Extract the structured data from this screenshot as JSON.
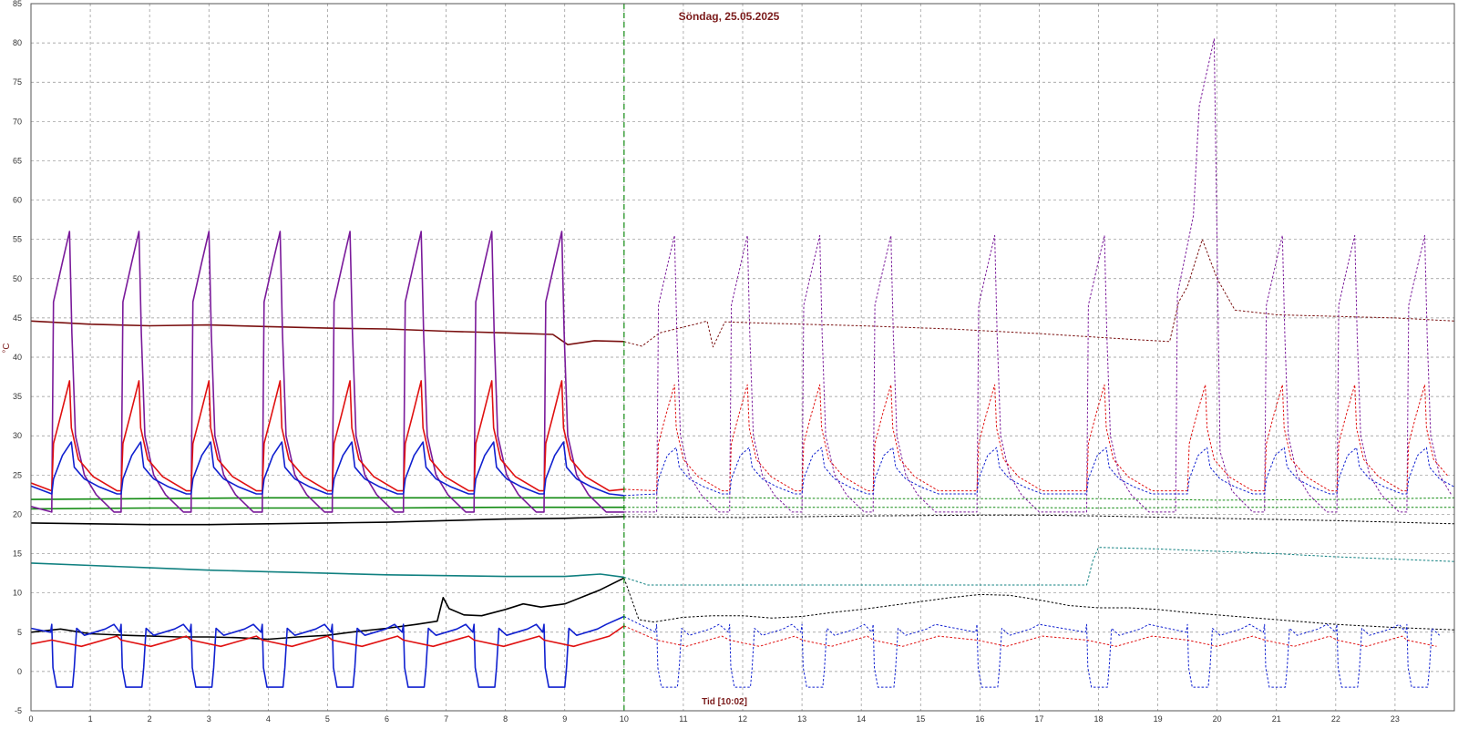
{
  "chart_data": {
    "type": "line",
    "title": "Söndag, 25.05.2025",
    "xlabel": "Tid [10:02]",
    "ylabel": "°C",
    "xlim": [
      0,
      24
    ],
    "ylim": [
      -5,
      85
    ],
    "x_ticks": [
      "0",
      "1",
      "2",
      "3",
      "4",
      "5",
      "6",
      "7",
      "8",
      "9",
      "10",
      "11",
      "12",
      "13",
      "14",
      "15",
      "16",
      "17",
      "18",
      "19",
      "20",
      "21",
      "22",
      "23"
    ],
    "y_ticks": [
      "-5",
      "0",
      "5",
      "10",
      "15",
      "20",
      "25",
      "30",
      "35",
      "40",
      "45",
      "50",
      "55",
      "60",
      "65",
      "70",
      "75",
      "80",
      "85"
    ],
    "grid": true,
    "current_time_marker": 10.0,
    "colors": {
      "purple": "#7a1a9a",
      "red": "#e01010",
      "blue": "#1020d0",
      "darkred": "#7a1010",
      "green": "#108a10",
      "black": "#000000",
      "teal": "#108080",
      "grid": "#909090",
      "marker": "#108a10"
    },
    "cycles": {
      "today": [
        0.35,
        1.52,
        2.7,
        3.9,
        5.08,
        6.28,
        7.47,
        8.65
      ],
      "yesterday": [
        10.55,
        11.78,
        13.0,
        14.2,
        15.95,
        17.8,
        19.5,
        20.8,
        22.02,
        23.2
      ]
    },
    "series": [
      {
        "color": "darkred",
        "solid": [
          [
            0,
            44.6
          ],
          [
            1,
            44.2
          ],
          [
            2,
            44.0
          ],
          [
            3,
            44.1
          ],
          [
            4,
            43.9
          ],
          [
            5,
            43.7
          ],
          [
            6,
            43.6
          ],
          [
            7,
            43.3
          ],
          [
            8,
            43.1
          ],
          [
            8.8,
            42.9
          ],
          [
            9.05,
            41.6
          ],
          [
            9.5,
            42.1
          ],
          [
            10,
            42.0
          ]
        ],
        "dashed": [
          [
            10,
            42.0
          ],
          [
            10.3,
            41.4
          ],
          [
            10.6,
            43.1
          ],
          [
            11.2,
            44.2
          ],
          [
            11.4,
            44.6
          ],
          [
            11.5,
            41.3
          ],
          [
            11.7,
            44.5
          ],
          [
            12.5,
            44.3
          ],
          [
            14,
            44.0
          ],
          [
            15.5,
            43.6
          ],
          [
            17,
            43.0
          ],
          [
            18.5,
            42.3
          ],
          [
            19.2,
            42.0
          ],
          [
            19.35,
            47.0
          ],
          [
            19.5,
            49.0
          ],
          [
            19.75,
            55.0
          ],
          [
            20.0,
            50.0
          ],
          [
            20.3,
            46.0
          ],
          [
            21,
            45.4
          ],
          [
            22,
            45.2
          ],
          [
            23,
            45.0
          ],
          [
            24,
            44.6
          ]
        ]
      },
      {
        "color": "green",
        "solid": [
          [
            0,
            21.9
          ],
          [
            2,
            22.0
          ],
          [
            4,
            22.1
          ],
          [
            6,
            22.1
          ],
          [
            8,
            22.1
          ],
          [
            10,
            22.1
          ]
        ],
        "dashed": [
          [
            10,
            22.1
          ],
          [
            12,
            22.1
          ],
          [
            14,
            22.0
          ],
          [
            16,
            22.0
          ],
          [
            18,
            22.0
          ],
          [
            20,
            21.8
          ],
          [
            22,
            21.9
          ],
          [
            24,
            22.1
          ]
        ]
      },
      {
        "color": "green",
        "solid": [
          [
            0,
            20.7
          ],
          [
            2,
            20.8
          ],
          [
            4,
            20.8
          ],
          [
            6,
            20.8
          ],
          [
            8,
            20.9
          ],
          [
            10,
            20.9
          ]
        ],
        "dashed": [
          [
            10,
            20.9
          ],
          [
            12,
            20.9
          ],
          [
            14,
            20.9
          ],
          [
            16,
            20.9
          ],
          [
            18,
            20.8
          ],
          [
            20,
            20.9
          ],
          [
            22,
            20.9
          ],
          [
            24,
            20.9
          ]
        ]
      },
      {
        "color": "black",
        "solid": [
          [
            0,
            18.9
          ],
          [
            1,
            18.8
          ],
          [
            2,
            18.7
          ],
          [
            3,
            18.7
          ],
          [
            4,
            18.8
          ],
          [
            5,
            18.9
          ],
          [
            6,
            19.0
          ],
          [
            7,
            19.2
          ],
          [
            8,
            19.4
          ],
          [
            9,
            19.5
          ],
          [
            10,
            19.7
          ]
        ],
        "dashed": [
          [
            10,
            19.7
          ],
          [
            12,
            19.6
          ],
          [
            14,
            19.8
          ],
          [
            16,
            19.9
          ],
          [
            17,
            19.9
          ],
          [
            18,
            19.8
          ],
          [
            20,
            19.5
          ],
          [
            22,
            19.2
          ],
          [
            24,
            18.8
          ]
        ]
      },
      {
        "color": "teal",
        "solid": [
          [
            0,
            13.8
          ],
          [
            1,
            13.5
          ],
          [
            2,
            13.2
          ],
          [
            3,
            12.9
          ],
          [
            4,
            12.7
          ],
          [
            5,
            12.5
          ],
          [
            6,
            12.3
          ],
          [
            7,
            12.2
          ],
          [
            8,
            12.1
          ],
          [
            9,
            12.1
          ],
          [
            9.6,
            12.4
          ],
          [
            10,
            12.0
          ]
        ],
        "dashed": [
          [
            10,
            12.0
          ],
          [
            10.4,
            11.0
          ],
          [
            12,
            11.0
          ],
          [
            14,
            11.0
          ],
          [
            16,
            11.0
          ],
          [
            17.8,
            11.0
          ],
          [
            17.9,
            14.0
          ],
          [
            18.0,
            15.8
          ],
          [
            19,
            15.6
          ],
          [
            20,
            15.3
          ],
          [
            21,
            15.0
          ],
          [
            22,
            14.6
          ],
          [
            23,
            14.3
          ],
          [
            24,
            14.0
          ]
        ]
      },
      {
        "color": "black",
        "solid": [
          [
            0,
            5.0
          ],
          [
            0.5,
            5.4
          ],
          [
            1,
            4.8
          ],
          [
            1.6,
            4.6
          ],
          [
            2.5,
            4.4
          ],
          [
            3,
            4.4
          ],
          [
            3.5,
            4.3
          ],
          [
            4,
            4.1
          ],
          [
            4.5,
            4.4
          ],
          [
            5,
            4.6
          ],
          [
            5.5,
            5.1
          ],
          [
            6,
            5.5
          ],
          [
            6.5,
            6.0
          ],
          [
            6.85,
            6.4
          ],
          [
            6.95,
            9.4
          ],
          [
            7.05,
            8.0
          ],
          [
            7.3,
            7.2
          ],
          [
            7.6,
            7.1
          ],
          [
            8.0,
            7.9
          ],
          [
            8.3,
            8.6
          ],
          [
            8.6,
            8.2
          ],
          [
            9.0,
            8.6
          ],
          [
            9.3,
            9.5
          ],
          [
            9.6,
            10.4
          ],
          [
            10,
            11.9
          ]
        ],
        "dashed": [
          [
            10,
            11.9
          ],
          [
            10.25,
            6.6
          ],
          [
            10.5,
            6.3
          ],
          [
            11,
            6.9
          ],
          [
            11.5,
            7.1
          ],
          [
            12,
            7.1
          ],
          [
            12.5,
            6.8
          ],
          [
            13,
            7.0
          ],
          [
            13.5,
            7.5
          ],
          [
            14,
            7.9
          ],
          [
            14.5,
            8.4
          ],
          [
            15,
            8.9
          ],
          [
            15.5,
            9.4
          ],
          [
            16,
            9.8
          ],
          [
            16.5,
            9.7
          ],
          [
            17,
            9.1
          ],
          [
            17.5,
            8.4
          ],
          [
            18,
            8.1
          ],
          [
            18.5,
            8.1
          ],
          [
            19,
            7.9
          ],
          [
            19.5,
            7.5
          ],
          [
            20,
            7.2
          ],
          [
            21,
            6.6
          ],
          [
            22,
            6.0
          ],
          [
            23,
            5.6
          ],
          [
            24,
            5.3
          ]
        ]
      },
      {
        "color": "purple",
        "shape": "purple",
        "cycle": "today",
        "dash_cycle": "yesterday",
        "base": 20.3,
        "peak_today": 56.0,
        "spike": {
          "start": 19.3,
          "mid": 19.6,
          "top": 19.95,
          "peak": 80.5,
          "end": 20.05
        }
      },
      {
        "color": "red",
        "shape": "red",
        "cycle": "today",
        "dash_cycle": "yesterday",
        "base": 23.0,
        "peak_today": 37.0
      },
      {
        "color": "blue",
        "shape": "blue",
        "cycle": "today",
        "dash_cycle": "yesterday",
        "base": 22.6,
        "peak_today": 29.2
      },
      {
        "color": "blue",
        "shape": "blue_low",
        "cycle": "today",
        "dash_cycle": "yesterday",
        "base": 5.0,
        "low": -2.0
      },
      {
        "color": "red",
        "shape": "red_low",
        "cycle": "today",
        "dash_cycle": "yesterday",
        "base": 3.2,
        "top": 6.8
      }
    ]
  }
}
